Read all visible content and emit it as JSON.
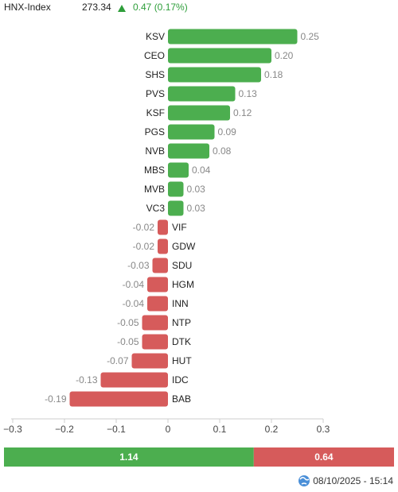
{
  "header": {
    "name": "HNX-Index",
    "value": "273.34",
    "change": "0.47 (0.17%)"
  },
  "chart_data": {
    "type": "hbar",
    "categories": [
      "KSV",
      "CEO",
      "SHS",
      "PVS",
      "KSF",
      "PGS",
      "NVB",
      "MBS",
      "MVB",
      "VC3",
      "VIF",
      "GDW",
      "SDU",
      "HGM",
      "INN",
      "NTP",
      "DTK",
      "HUT",
      "IDC",
      "BAB"
    ],
    "values": [
      0.25,
      0.2,
      0.18,
      0.13,
      0.12,
      0.09,
      0.08,
      0.04,
      0.03,
      0.03,
      -0.02,
      -0.02,
      -0.03,
      -0.04,
      -0.04,
      -0.05,
      -0.05,
      -0.07,
      -0.13,
      -0.19
    ],
    "value_labels": [
      "0.25",
      "0.20",
      "0.18",
      "0.13",
      "0.12",
      "0.09",
      "0.08",
      "0.04",
      "0.03",
      "0.03",
      "-0.02",
      "-0.02",
      "-0.03",
      "-0.04",
      "-0.04",
      "-0.05",
      "-0.05",
      "-0.07",
      "-0.13",
      "-0.19"
    ],
    "colors": {
      "positive": "#4cae4f",
      "negative": "#d65b5b"
    },
    "xlim": [
      -0.3,
      0.3
    ],
    "xticks": [
      {
        "value": -0.3,
        "label": "−0.3"
      },
      {
        "value": -0.2,
        "label": "−0.2"
      },
      {
        "value": -0.1,
        "label": "−0.1"
      },
      0,
      0.1,
      0.2,
      0.3
    ]
  },
  "summary": {
    "up": 1.14,
    "down": 0.64
  },
  "footer": {
    "timestamp": "08/10/2025 - 15:14"
  }
}
